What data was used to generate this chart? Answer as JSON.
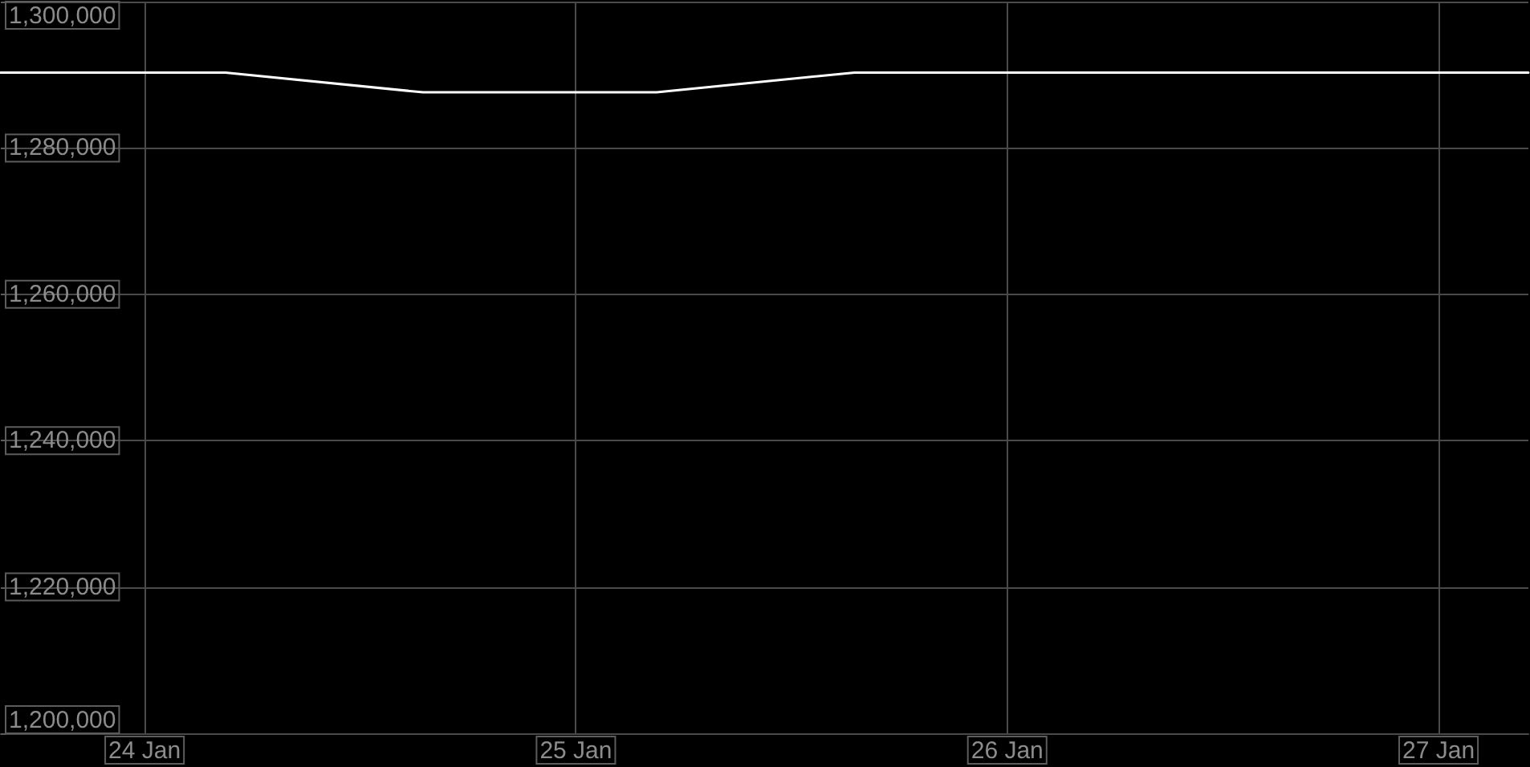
{
  "chart_data": {
    "type": "line",
    "x": [
      "--01-23T16:00",
      "--01-24T04:30",
      "--01-24T15:30",
      "--01-25T04:30",
      "--01-25T15:30",
      "--01-27T05:00"
    ],
    "series": [
      {
        "color": "#ffffff",
        "values": [
          1290300,
          1290300,
          1287600,
          1287600,
          1290300,
          1290300
        ]
      }
    ],
    "xlim": [
      "--01-23T16:00",
      "--01-27T05:00"
    ],
    "xticks": [
      {
        "value": "--01-24",
        "label": "24 Jan"
      },
      {
        "value": "--01-25",
        "label": "25 Jan"
      },
      {
        "value": "--01-26",
        "label": "26 Jan"
      },
      {
        "value": "--01-27",
        "label": "27 Jan"
      }
    ],
    "ylim": [
      1200000,
      1300000
    ],
    "yticks": [
      {
        "value": 1200000,
        "label": "1,200,000"
      },
      {
        "value": 1220000,
        "label": "1,220,000"
      },
      {
        "value": 1240000,
        "label": "1,240,000"
      },
      {
        "value": 1260000,
        "label": "1,260,000"
      },
      {
        "value": 1280000,
        "label": "1,280,000"
      },
      {
        "value": 1300000,
        "label": "1,300,000"
      }
    ],
    "grid": true,
    "marker": "none"
  }
}
